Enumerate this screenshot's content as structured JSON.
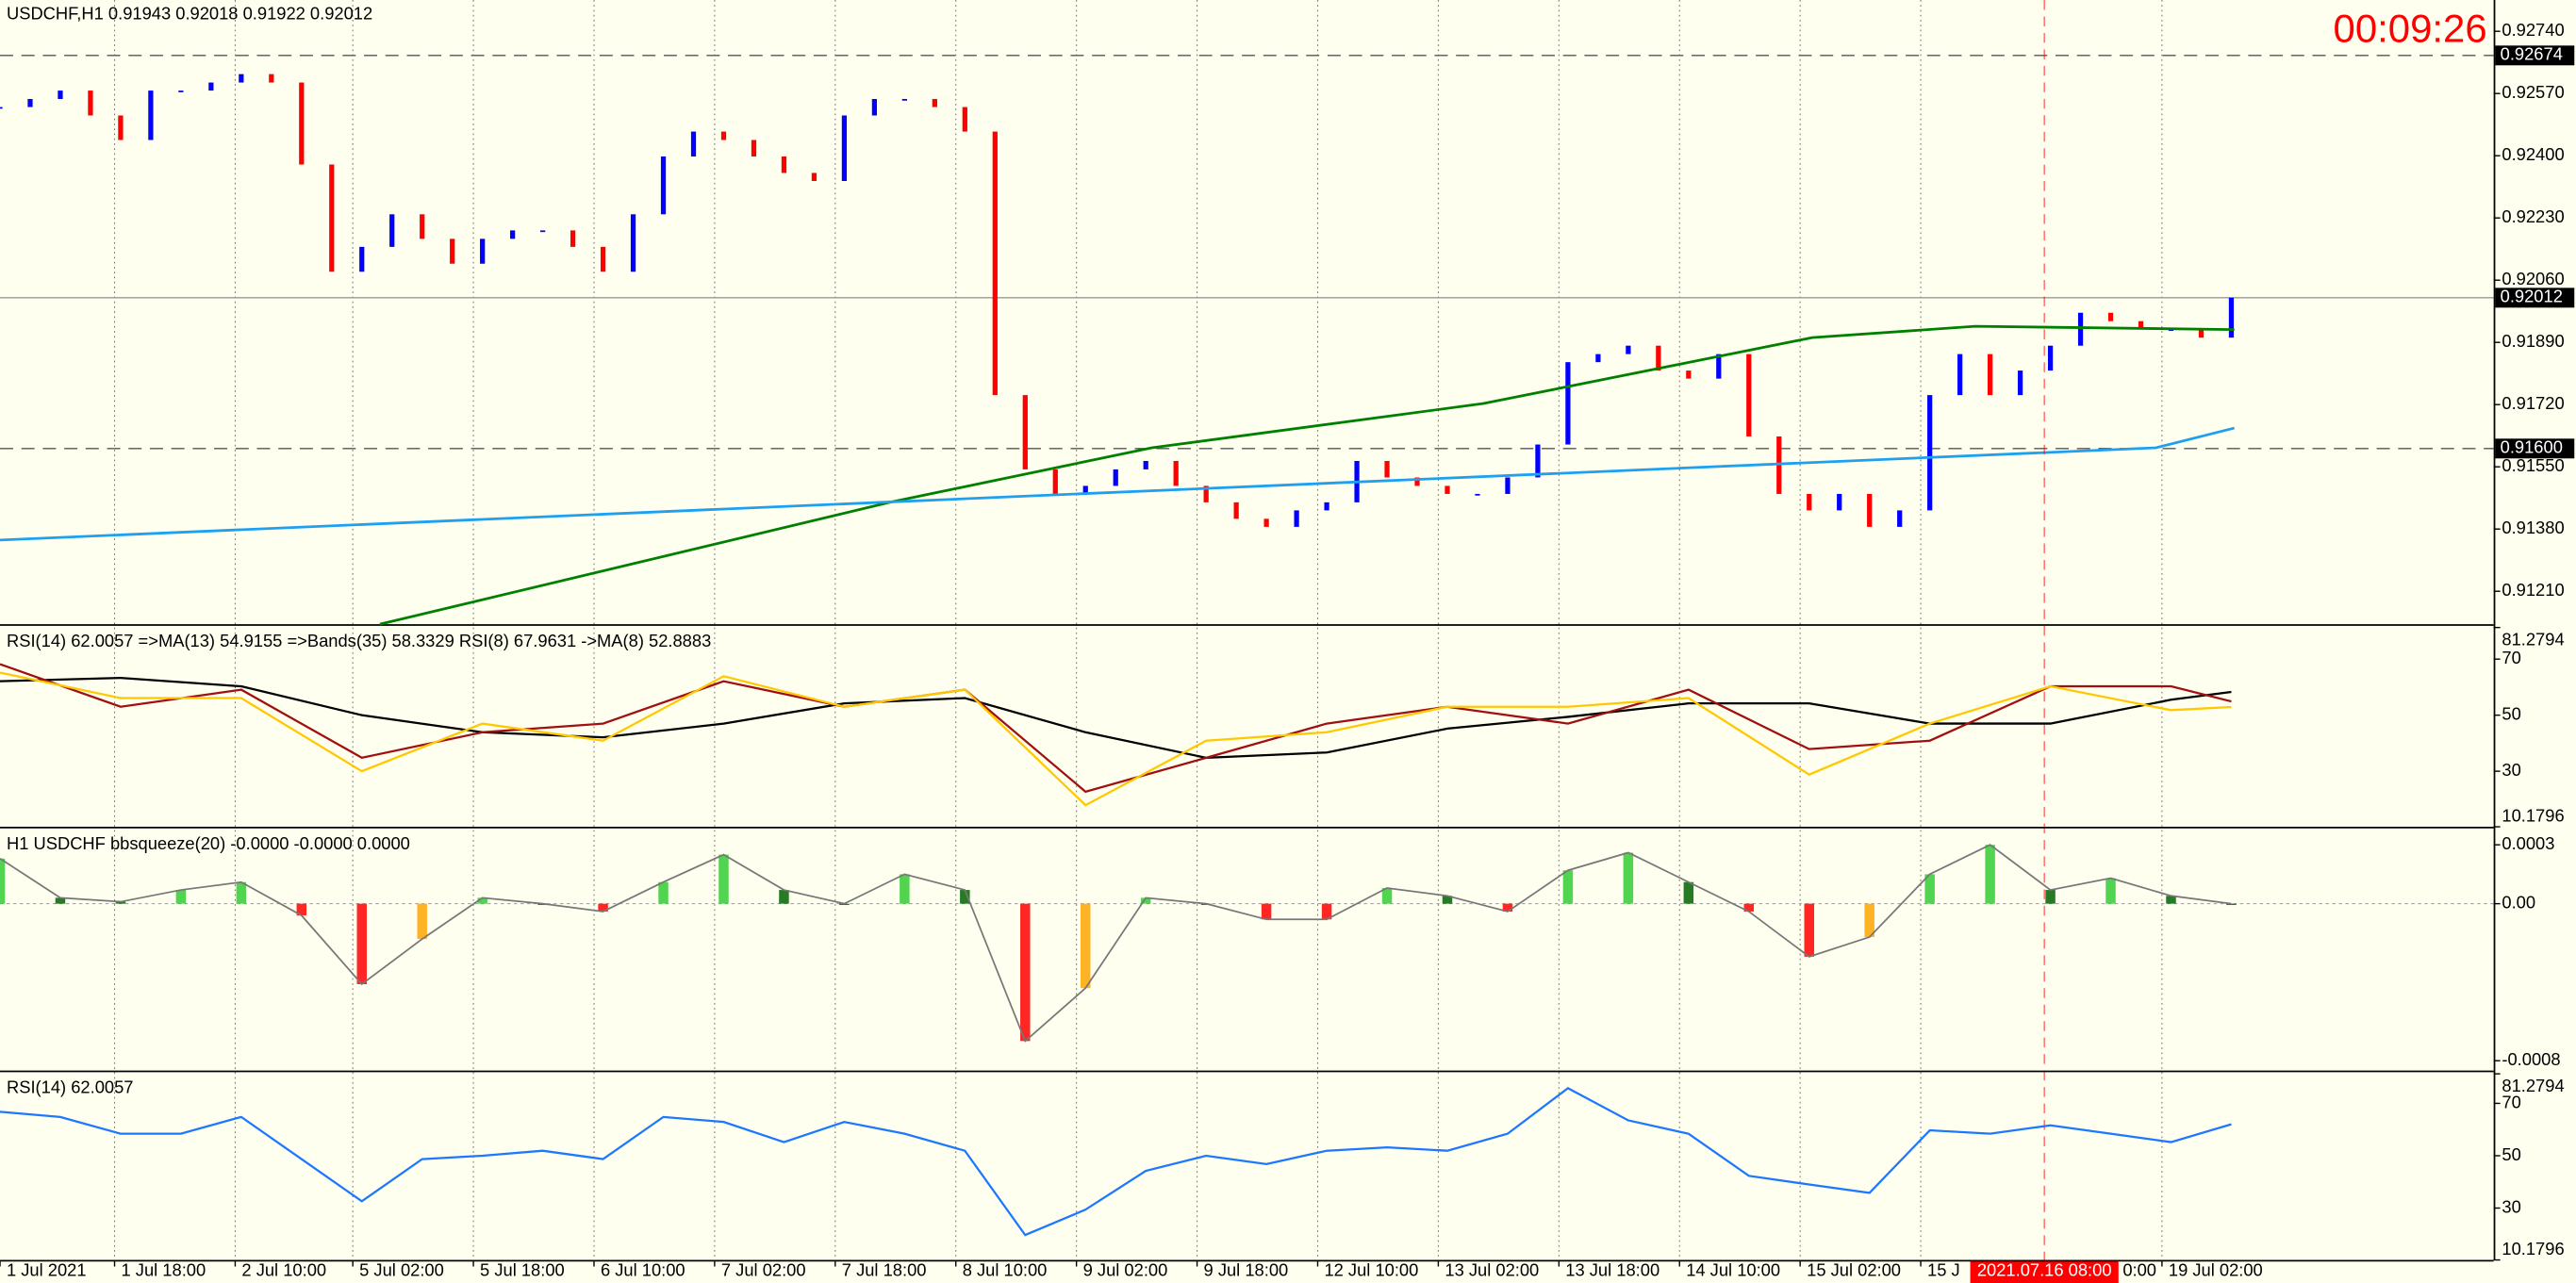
{
  "chart_data": [
    {
      "type": "price",
      "title": "USDCHF,H1  0.91943 0.92018 0.91922 0.92012",
      "timer": "00:09:26",
      "up_color": "#0000ff",
      "down_color": "#ff0000",
      "xlim": [
        0,
        82.7
      ],
      "ylim": [
        0.9112,
        0.928255
      ],
      "yticks": [
        {
          "value": 0.9274,
          "label": "0.92740"
        },
        {
          "value": 0.9257,
          "label": "0.92570"
        },
        {
          "value": 0.924,
          "label": "0.92400"
        },
        {
          "value": 0.9223,
          "label": "0.92230"
        },
        {
          "value": 0.9206,
          "label": "0.92060"
        },
        {
          "value": 0.9189,
          "label": "0.91890"
        },
        {
          "value": 0.9172,
          "label": "0.91720"
        },
        {
          "value": 0.9155,
          "label": "0.91550"
        },
        {
          "value": 0.9138,
          "label": "0.91380"
        },
        {
          "value": 0.9121,
          "label": "0.91210"
        }
      ],
      "xticks": [
        {
          "value": 0,
          "label": "1 Jul 2021"
        },
        {
          "value": 3.8,
          "label": "1 Jul 18:00"
        },
        {
          "value": 7.8,
          "label": "2 Jul 10:00"
        },
        {
          "value": 11.7,
          "label": "5 Jul 02:00"
        },
        {
          "value": 15.7,
          "label": "5 Jul 18:00"
        },
        {
          "value": 19.7,
          "label": "6 Jul 10:00"
        },
        {
          "value": 23.7,
          "label": "7 Jul 02:00"
        },
        {
          "value": 27.7,
          "label": "7 Jul 18:00"
        },
        {
          "value": 31.7,
          "label": "8 Jul 10:00"
        },
        {
          "value": 35.7,
          "label": "9 Jul 02:00"
        },
        {
          "value": 39.7,
          "label": "9 Jul 18:00"
        },
        {
          "value": 43.7,
          "label": "12 Jul 10:00"
        },
        {
          "value": 47.7,
          "label": "13 Jul 02:00"
        },
        {
          "value": 51.7,
          "label": "13 Jul 18:00"
        },
        {
          "value": 55.7,
          "label": "14 Jul 10:00"
        },
        {
          "value": 59.7,
          "label": "15 Jul 02:00"
        },
        {
          "value": 63.7,
          "label": "15 J"
        },
        {
          "value": 71.7,
          "label": "19 Jul 02:00"
        }
      ],
      "annotations": [
        {
          "text": "0:00",
          "x": 70.4
        }
      ],
      "cursor": {
        "label": "2021.07.16 08:00",
        "x": 67.8,
        "color": "#ff0000"
      },
      "levels": [
        {
          "value": 0.92674,
          "label": "0.92674"
        },
        {
          "value": 0.916,
          "label": "0.91600"
        }
      ],
      "price_line": {
        "value": 0.92012,
        "label": "0.92012"
      },
      "values": [
        0.92533,
        0.92555,
        0.92578,
        0.9251,
        0.92443,
        0.92578,
        0.92578,
        0.926,
        0.92623,
        0.926,
        0.92376,
        0.92083,
        0.92151,
        0.9224,
        0.92173,
        0.92105,
        0.92173,
        0.92196,
        0.92196,
        0.92151,
        0.92083,
        0.9224,
        0.92398,
        0.92466,
        0.92443,
        0.92398,
        0.92353,
        0.92331,
        0.9251,
        0.92555,
        0.92555,
        0.92533,
        0.92466,
        0.91746,
        0.91543,
        0.91476,
        0.91498,
        0.91543,
        0.91566,
        0.91498,
        0.91453,
        0.91408,
        0.91386,
        0.91431,
        0.91453,
        0.91566,
        0.91521,
        0.91498,
        0.91476,
        0.91476,
        0.91521,
        0.91611,
        0.91836,
        0.91858,
        0.91881,
        0.91813,
        0.91791,
        0.91858,
        0.91633,
        0.91476,
        0.91431,
        0.91476,
        0.91386,
        0.91431,
        0.91746,
        0.91858,
        0.91746,
        0.91813,
        0.91881,
        0.91971,
        0.91948,
        0.91926,
        0.91926,
        0.91903,
        0.92012
      ],
      "series": [
        {
          "color": "#008000",
          "x": [
            12.6,
            29.5,
            38.2,
            49.2,
            60.1,
            65.5,
            74.1
          ],
          "values": [
            0.9112,
            0.91453,
            0.91602,
            0.91723,
            0.91903,
            0.91934,
            0.91925
          ]
        },
        {
          "color": "#1ea0f0",
          "x": [
            0,
            71.5,
            74.1
          ],
          "values": [
            0.9135,
            0.91602,
            0.91656
          ]
        }
      ]
    },
    {
      "type": "line",
      "title": "RSI(14) 62.0057  =>MA(13) 54.9155  =>Bands(35) 58.3329  RSI(8) 67.9631  ->MA(8) 52.8883",
      "ylim": [
        10.1796,
        81.2794
      ],
      "yticks": [
        81.2794,
        70,
        50,
        30,
        10.1796
      ],
      "x": [
        0,
        4,
        8,
        12,
        16,
        20,
        24,
        28,
        32,
        36,
        40,
        44,
        48,
        52,
        56,
        60,
        64,
        68,
        72,
        74
      ],
      "series": [
        {
          "color": "#000000",
          "values": [
            62.1,
            63.3,
            60.3,
            50,
            43.9,
            42.1,
            47,
            54.2,
            56.1,
            43.9,
            34.8,
            36.7,
            45.2,
            49.4,
            54.2,
            54.2,
            47,
            47,
            55.5,
            58.3
          ]
        },
        {
          "color": "#a01010",
          "values": [
            68.2,
            53,
            59.1,
            34.8,
            43.9,
            47,
            62.1,
            53,
            59.1,
            22.7,
            34.8,
            47,
            53,
            47,
            59.1,
            37.9,
            40.9,
            60.3,
            60.3,
            54.9
          ]
        },
        {
          "color": "#ffc800",
          "values": [
            65.2,
            56.1,
            56.1,
            30,
            47,
            40.9,
            63.9,
            53,
            59.1,
            17.9,
            40.9,
            43.9,
            53,
            53,
            56.1,
            28.8,
            47,
            60.3,
            51.8,
            52.9
          ]
        }
      ]
    },
    {
      "type": "bar",
      "title": "H1 USDCHF bbsqueeze(20) -0.0000 -0.0000 0.0000",
      "ylim": [
        -0.00085,
        0.000375
      ],
      "yticks": [
        0.0003,
        {
          "value": 0,
          "label": "0.00"
        },
        -0.0008
      ],
      "colors": [
        "#32cd32",
        "#006400",
        "#ff0000",
        "#ffa500"
      ],
      "x": [
        0,
        2,
        4,
        6,
        8,
        10,
        12,
        14,
        16,
        18,
        20,
        22,
        24,
        26,
        28,
        30,
        32,
        34,
        36,
        38,
        40,
        42,
        44,
        46,
        48,
        50,
        52,
        54,
        56,
        58,
        60,
        62,
        64,
        66,
        68,
        70,
        72,
        74
      ],
      "values": [
        0.00023,
        3e-05,
        1e-05,
        7e-05,
        0.00011,
        -6e-05,
        -0.00041,
        -0.00018,
        3e-05,
        0,
        -4e-05,
        0.00011,
        0.00025,
        7e-05,
        0,
        0.00015,
        7e-05,
        -0.0007,
        -0.00043,
        3e-05,
        0,
        -8e-05,
        -8e-05,
        8e-05,
        4e-05,
        -4e-05,
        0.00017,
        0.00026,
        0.00011,
        -4e-05,
        -0.00027,
        -0.00017,
        0.00015,
        0.0003,
        7e-05,
        0.00013,
        4e-05,
        0
      ]
    },
    {
      "type": "line",
      "title": "RSI(14) 62.0057",
      "ylim": [
        10.1796,
        81.2794
      ],
      "yticks": [
        81.2794,
        70,
        50,
        30,
        10.1796
      ],
      "x": [
        0,
        2,
        4,
        6,
        8,
        10,
        12,
        14,
        16,
        18,
        20,
        22,
        24,
        26,
        28,
        30,
        32,
        34,
        36,
        38,
        40,
        42,
        44,
        46,
        48,
        50,
        52,
        54,
        56,
        58,
        60,
        62,
        64,
        66,
        68,
        70,
        72,
        74
      ],
      "series": [
        {
          "color": "#1e78ff",
          "values": [
            66.8,
            64.8,
            58.4,
            58.4,
            64.8,
            48.7,
            32.6,
            48.7,
            50,
            51.9,
            48.7,
            64.8,
            62.9,
            55.2,
            62.9,
            58.4,
            51.9,
            19.7,
            29.4,
            44.2,
            50,
            46.8,
            51.9,
            53.2,
            51.9,
            58.4,
            75.8,
            63.5,
            58.4,
            42.3,
            39,
            35.8,
            59.7,
            58.4,
            61.6,
            58.4,
            55.2,
            62
          ]
        }
      ]
    }
  ]
}
